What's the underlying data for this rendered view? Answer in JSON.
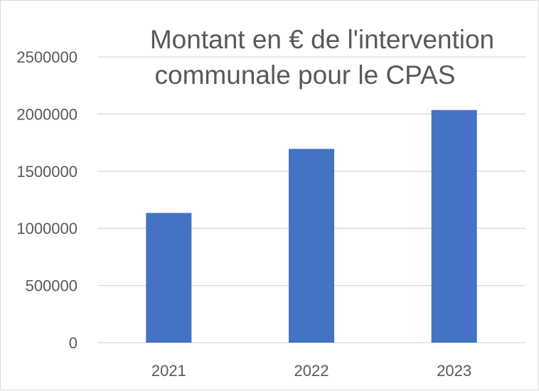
{
  "chart_data": {
    "type": "bar",
    "title_lines": [
      "Montant en € de l'intervention",
      "communale pour le CPAS"
    ],
    "categories": [
      "2021",
      "2022",
      "2023"
    ],
    "values": [
      1135000,
      1695000,
      2035000
    ],
    "ylim": [
      0,
      2500000
    ],
    "y_ticks": [
      0,
      500000,
      1000000,
      1500000,
      2000000,
      2500000
    ],
    "y_tick_labels": [
      "0",
      "500000",
      "1000000",
      "1500000",
      "2000000",
      "2500000"
    ],
    "grid": true,
    "bar_color": "#4472c4",
    "grid_color": "#d9d9d9",
    "text_color": "#595959"
  }
}
